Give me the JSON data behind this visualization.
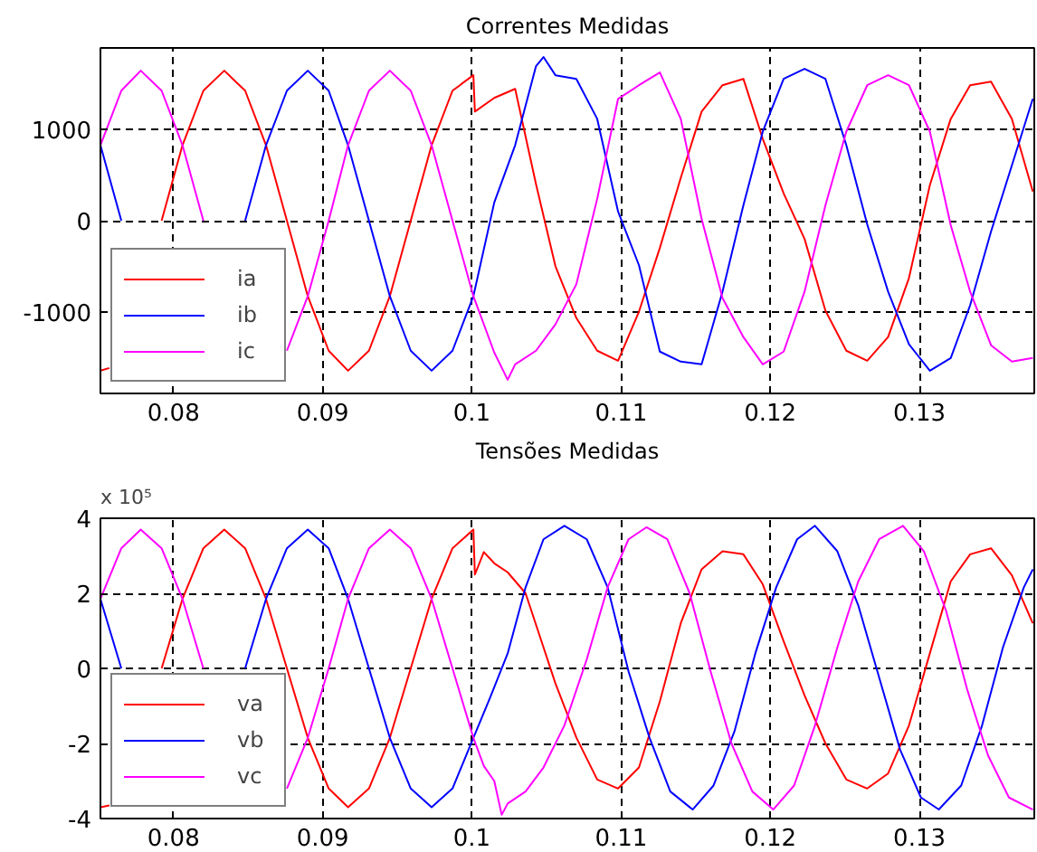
{
  "chart_data": [
    {
      "type": "line",
      "title": "Correntes Medidas",
      "xlim": [
        0.0751,
        0.1377
      ],
      "ylim": [
        -1900,
        1900
      ],
      "xticks": [
        0.08,
        0.09,
        0.1,
        0.11,
        0.12,
        0.13
      ],
      "yticks": [
        -1000,
        0,
        1000
      ],
      "grid": true,
      "legend": "bottom left",
      "series": [
        {
          "name": "ia",
          "color": "#ff0000",
          "x": [
            0.0751,
            0.0757,
            0.0765,
            0.0778,
            0.0792,
            0.0806,
            0.082,
            0.0834,
            0.0848,
            0.0862,
            0.0876,
            0.089,
            0.0904,
            0.0917,
            0.0931,
            0.0945,
            0.0959,
            0.0973,
            0.0987,
            0.1001,
            0.1002,
            0.1015,
            0.1029,
            0.1043,
            0.1056,
            0.107,
            0.1084,
            0.1098,
            0.1112,
            0.1126,
            0.114,
            0.1154,
            0.1168,
            0.1182,
            0.1195,
            0.1209,
            0.1223,
            0.1237,
            0.1251,
            0.1265,
            0.1279,
            0.1293,
            0.1307,
            0.1321,
            0.1334,
            0.1348,
            0.1362,
            0.1376
          ],
          "values": [
            -1650,
            -1620,
            null,
            null,
            0,
            830,
            1430,
            1650,
            1430,
            830,
            0,
            -830,
            -1430,
            -1650,
            -1430,
            -830,
            0,
            830,
            1430,
            1600,
            1200,
            1350,
            1450,
            400,
            -500,
            -1070,
            -1430,
            -1540,
            -1000,
            -300,
            470,
            1200,
            1490,
            1560,
            900,
            300,
            -200,
            -990,
            -1430,
            -1540,
            -1280,
            -630,
            390,
            1120,
            1490,
            1530,
            1120,
            320
          ]
        },
        {
          "name": "ib",
          "color": "#0000ff",
          "x": [
            0.0751,
            0.0765,
            0.0778,
            0.0792,
            0.0806,
            0.082,
            0.0834,
            0.0848,
            0.0862,
            0.0876,
            0.089,
            0.0904,
            0.0917,
            0.0931,
            0.0945,
            0.0959,
            0.0973,
            0.0987,
            0.1001,
            0.1015,
            0.1029,
            0.1043,
            0.1048,
            0.1056,
            0.107,
            0.1084,
            0.1098,
            0.1112,
            0.1126,
            0.114,
            0.1154,
            0.1168,
            0.1182,
            0.1195,
            0.1209,
            0.1223,
            0.1237,
            0.1251,
            0.1265,
            0.1279,
            0.1293,
            0.1307,
            0.1321,
            0.1334,
            0.1348,
            0.1362,
            0.1376
          ],
          "values": [
            830,
            0,
            null,
            null,
            null,
            null,
            null,
            0,
            830,
            1430,
            1650,
            1430,
            830,
            0,
            -830,
            -1430,
            -1650,
            -1430,
            -830,
            200,
            830,
            1700,
            1800,
            1600,
            1560,
            1120,
            100,
            -490,
            -1440,
            -1550,
            -1580,
            -780,
            170,
            980,
            1560,
            1670,
            1560,
            830,
            -40,
            -780,
            -1360,
            -1650,
            -1510,
            -930,
            -120,
            610,
            1340
          ]
        },
        {
          "name": "ic",
          "color": "#ff00ff",
          "x": [
            0.0751,
            0.0765,
            0.0778,
            0.0792,
            0.0806,
            0.082,
            0.0834,
            0.0848,
            0.0862,
            0.0876,
            0.089,
            0.0904,
            0.0917,
            0.0931,
            0.0945,
            0.0959,
            0.0973,
            0.0987,
            0.1001,
            0.1015,
            0.1024,
            0.1029,
            0.1043,
            0.1056,
            0.107,
            0.1084,
            0.1098,
            0.1112,
            0.1126,
            0.114,
            0.1154,
            0.1168,
            0.1182,
            0.1195,
            0.1209,
            0.1223,
            0.1237,
            0.1251,
            0.1265,
            0.1279,
            0.1293,
            0.1307,
            0.1321,
            0.1334,
            0.1348,
            0.1362,
            0.1376
          ],
          "values": [
            830,
            1430,
            1650,
            1430,
            830,
            0,
            null,
            null,
            null,
            -1430,
            -830,
            0,
            830,
            1430,
            1650,
            1430,
            830,
            0,
            -830,
            -1450,
            -1750,
            -1580,
            -1430,
            -1140,
            -700,
            240,
            1340,
            1490,
            1630,
            1120,
            20,
            -850,
            -1280,
            -1580,
            -1440,
            -780,
            170,
            980,
            1490,
            1600,
            1490,
            980,
            -50,
            -780,
            -1370,
            -1550,
            -1510
          ]
        }
      ]
    },
    {
      "type": "line",
      "title": "Tensões Medidas",
      "annotations": [
        "x 10⁵"
      ],
      "xlim": [
        0.0751,
        0.1377
      ],
      "ylim": [
        -4,
        4
      ],
      "xticks": [
        0.08,
        0.09,
        0.1,
        0.11,
        0.12,
        0.13
      ],
      "yticks": [
        -4,
        -2,
        0,
        2,
        4
      ],
      "grid": true,
      "legend": "bottom left",
      "series": [
        {
          "name": "va",
          "color": "#ff0000",
          "x": [
            0.0751,
            0.0757,
            0.0765,
            0.0778,
            0.0792,
            0.0806,
            0.082,
            0.0834,
            0.0848,
            0.0862,
            0.0876,
            0.089,
            0.0904,
            0.0917,
            0.0931,
            0.0945,
            0.0959,
            0.0973,
            0.0987,
            0.1001,
            0.1002,
            0.1008,
            0.1015,
            0.1024,
            0.1036,
            0.1048,
            0.1056,
            0.107,
            0.1084,
            0.1098,
            0.1112,
            0.1126,
            0.114,
            0.1154,
            0.1168,
            0.1182,
            0.1195,
            0.1209,
            0.1223,
            0.1237,
            0.1251,
            0.1265,
            0.1279,
            0.1293,
            0.1307,
            0.1321,
            0.1334,
            0.1348,
            0.1362,
            0.1376
          ],
          "values": [
            -3.7,
            -3.65,
            null,
            null,
            0,
            1.85,
            3.2,
            3.7,
            3.2,
            1.85,
            0,
            -1.85,
            -3.2,
            -3.7,
            -3.2,
            -1.85,
            0,
            1.85,
            3.2,
            3.7,
            2.5,
            3.1,
            2.8,
            2.56,
            2.0,
            0.56,
            -0.4,
            -1.84,
            -2.96,
            -3.2,
            -2.64,
            -0.88,
            1.2,
            2.64,
            3.12,
            3.04,
            2.24,
            0.72,
            -0.72,
            -2.0,
            -2.96,
            -3.2,
            -2.8,
            -1.52,
            0.4,
            2.32,
            3.04,
            3.2,
            2.48,
            1.2
          ]
        },
        {
          "name": "vb",
          "color": "#0000ff",
          "x": [
            0.0751,
            0.0765,
            0.0778,
            0.0792,
            0.0806,
            0.082,
            0.0834,
            0.0848,
            0.0862,
            0.0876,
            0.089,
            0.0904,
            0.0917,
            0.0931,
            0.0945,
            0.0959,
            0.0973,
            0.0987,
            0.1001,
            0.1012,
            0.1024,
            0.1036,
            0.1048,
            0.1062,
            0.1077,
            0.1091,
            0.1105,
            0.1119,
            0.1133,
            0.1148,
            0.1162,
            0.1176,
            0.119,
            0.1204,
            0.1218,
            0.123,
            0.1245,
            0.1259,
            0.1273,
            0.1287,
            0.1301,
            0.1313,
            0.1328,
            0.1342,
            0.1356,
            0.137,
            0.1376
          ],
          "values": [
            1.85,
            0,
            null,
            null,
            null,
            null,
            null,
            0,
            1.85,
            3.2,
            3.7,
            3.2,
            1.85,
            0,
            -1.85,
            -3.2,
            -3.7,
            -3.2,
            -1.85,
            -0.8,
            0.4,
            2.16,
            3.44,
            3.8,
            3.44,
            2.16,
            -0.08,
            -1.84,
            -3.28,
            -3.76,
            -3.12,
            -1.68,
            0.4,
            2.16,
            3.44,
            3.8,
            3.12,
            1.68,
            -0.24,
            -2.16,
            -3.44,
            -3.76,
            -3.12,
            -1.52,
            0.56,
            2.16,
            2.64
          ]
        },
        {
          "name": "vc",
          "color": "#ff00ff",
          "x": [
            0.0751,
            0.0765,
            0.0778,
            0.0792,
            0.0806,
            0.082,
            0.0834,
            0.0848,
            0.0862,
            0.0876,
            0.089,
            0.0904,
            0.0917,
            0.0931,
            0.0945,
            0.0959,
            0.0973,
            0.0987,
            0.1001,
            0.1008,
            0.1015,
            0.102,
            0.1024,
            0.1036,
            0.1048,
            0.1062,
            0.1077,
            0.1091,
            0.1105,
            0.1117,
            0.1131,
            0.1146,
            0.116,
            0.1174,
            0.1188,
            0.1202,
            0.1216,
            0.123,
            0.1245,
            0.1259,
            0.1273,
            0.1289,
            0.1303,
            0.1318,
            0.1332,
            0.1346,
            0.136,
            0.1376
          ],
          "values": [
            1.85,
            3.2,
            3.7,
            3.2,
            1.85,
            0,
            null,
            null,
            null,
            -3.2,
            -1.85,
            0,
            1.85,
            3.2,
            3.7,
            3.2,
            1.85,
            0,
            -1.85,
            -2.6,
            -3.0,
            -3.9,
            -3.6,
            -3.28,
            -2.64,
            -1.52,
            0.24,
            2.16,
            3.44,
            3.76,
            3.44,
            2.0,
            -0.08,
            -2.0,
            -3.28,
            -3.76,
            -3.12,
            -1.52,
            0.56,
            2.32,
            3.44,
            3.8,
            3.12,
            1.52,
            -0.56,
            -2.32,
            -3.44,
            -3.76
          ]
        }
      ]
    }
  ]
}
